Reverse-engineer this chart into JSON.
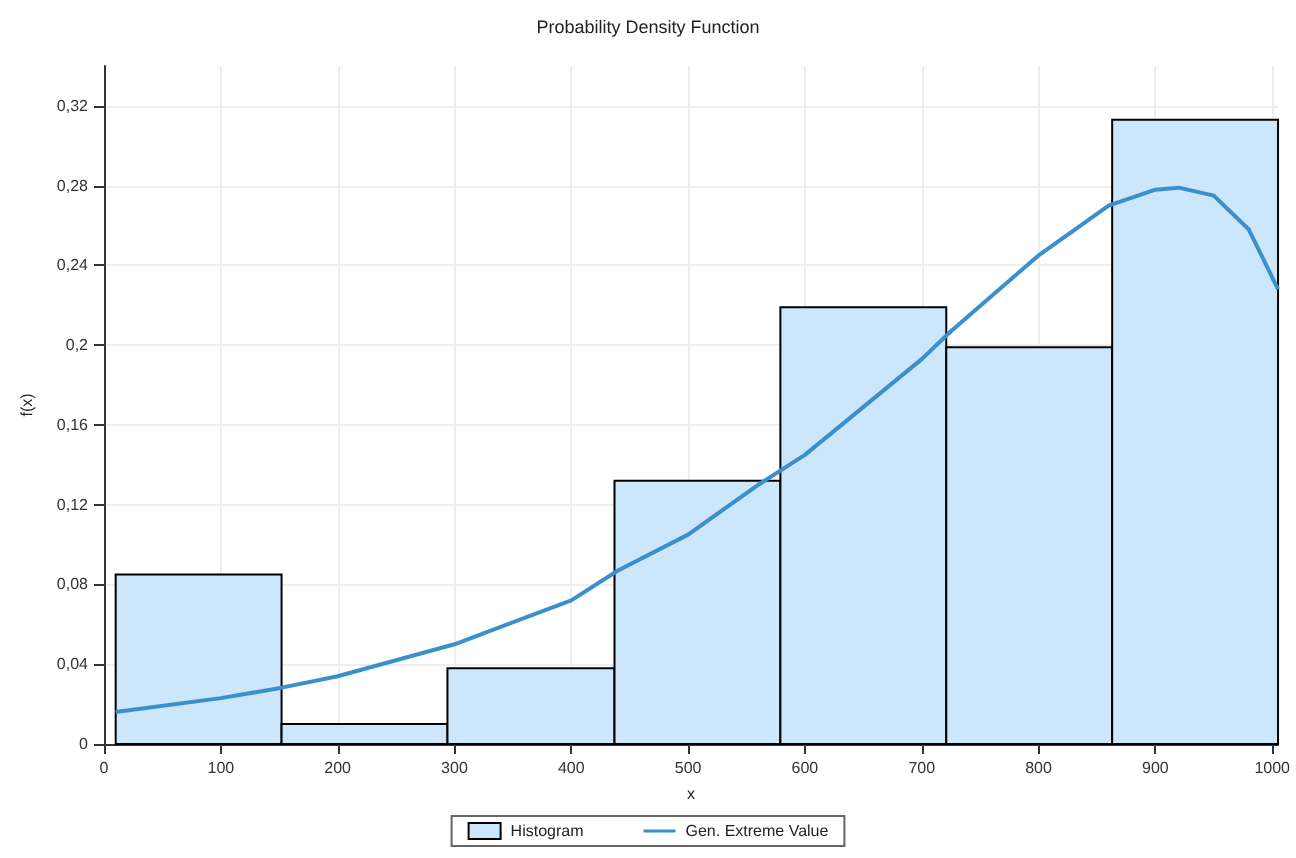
{
  "chart_data": {
    "type": "histogram",
    "title": "Probability Density Function",
    "xlabel": "x",
    "ylabel": "f(x)",
    "series": [
      {
        "name": "Histogram",
        "color": "#cce6fb",
        "bins": [
          10,
          152,
          294,
          437,
          579,
          721,
          863,
          1005
        ],
        "values": [
          0.085,
          0.01,
          0.038,
          0.132,
          0.219,
          0.199,
          0.313
        ]
      },
      {
        "type": "line",
        "name": "Gen. Extreme Value",
        "color": "#3a8fcc",
        "x": [
          10,
          100,
          150,
          200,
          300,
          400,
          440,
          500,
          560,
          600,
          700,
          725,
          800,
          860,
          900,
          920,
          950,
          980,
          1005
        ],
        "values": [
          0.016,
          0.023,
          0.028,
          0.034,
          0.05,
          0.072,
          0.087,
          0.105,
          0.13,
          0.145,
          0.193,
          0.207,
          0.245,
          0.27,
          0.278,
          0.279,
          0.275,
          0.258,
          0.228
        ]
      }
    ],
    "xlim": [
      0,
      1005
    ],
    "xticks": [
      0,
      100,
      200,
      300,
      400,
      500,
      600,
      700,
      800,
      900,
      1000
    ],
    "ylim": [
      0,
      0.34
    ],
    "yticks": [
      0,
      {
        "value": 0.04,
        "label": "0,04"
      },
      {
        "value": 0.08,
        "label": "0,08"
      },
      {
        "value": 0.12,
        "label": "0,12"
      },
      {
        "value": 0.16,
        "label": "0,16"
      },
      {
        "value": 0.2,
        "label": "0,2"
      },
      {
        "value": 0.24,
        "label": "0,24"
      },
      {
        "value": 0.28,
        "label": "0,28"
      },
      {
        "value": 0.32,
        "label": "0,32"
      }
    ],
    "grid": true,
    "legend": "bottom",
    "marker": "none",
    "line_style": "solid"
  }
}
